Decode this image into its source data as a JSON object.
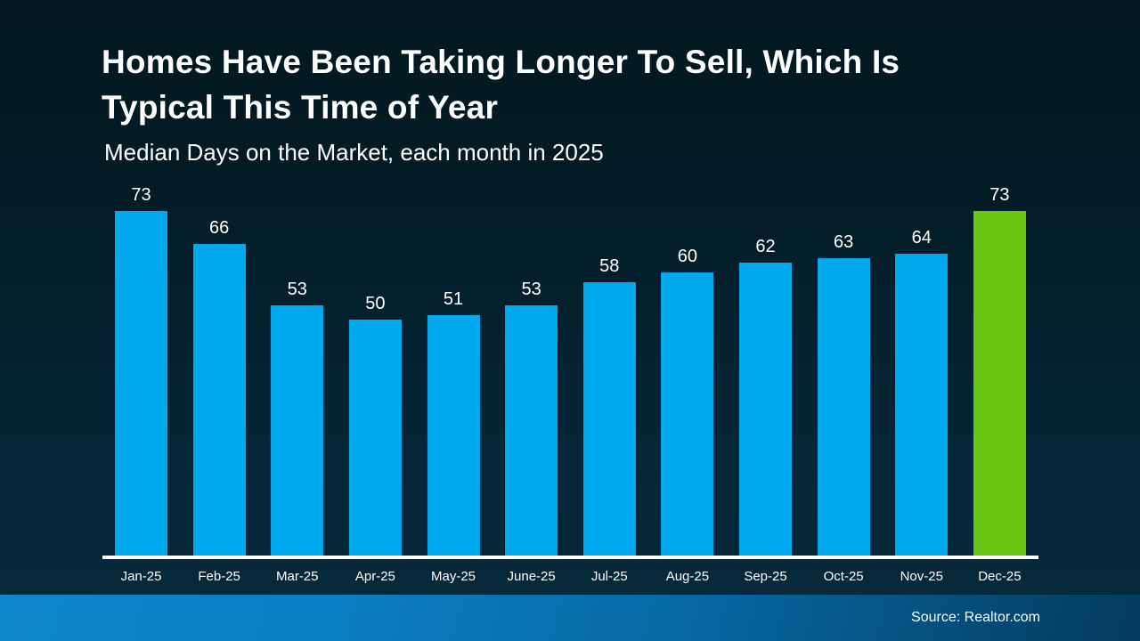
{
  "header": {
    "title_line1": "Homes Have Been Taking Longer To Sell, Which Is",
    "title_line2": "Typical This Time of Year",
    "subtitle": "Median Days on the Market, each month in 2025"
  },
  "chart_data": {
    "type": "bar",
    "title": "Homes Have Been Taking Longer To Sell, Which Is Typical This Time of Year",
    "subtitle": "Median Days on the Market, each month in 2025",
    "categories": [
      "Jan-25",
      "Feb-25",
      "Mar-25",
      "Apr-25",
      "May-25",
      "June-25",
      "Jul-25",
      "Aug-25",
      "Sep-25",
      "Oct-25",
      "Nov-25",
      "Dec-25"
    ],
    "values": [
      73,
      66,
      53,
      50,
      51,
      53,
      58,
      60,
      62,
      63,
      64,
      73
    ],
    "xlabel": "",
    "ylabel": "Median Days on the Market",
    "ylim": [
      0,
      73
    ],
    "grid": false,
    "legend": "none",
    "value_labels": true,
    "bar_color": "#00a9ee",
    "highlight_index": 11,
    "highlight_color": "#69c713",
    "axis_line_color": "#ffffff"
  },
  "footer": {
    "source": "Source: Realtor.com"
  },
  "colors": {
    "background_top": "#03181f",
    "background_bottom": "#07293a",
    "text": "#ffffff",
    "footer_gradient_left": "#0d87ce",
    "footer_gradient_right": "#043b5e"
  }
}
